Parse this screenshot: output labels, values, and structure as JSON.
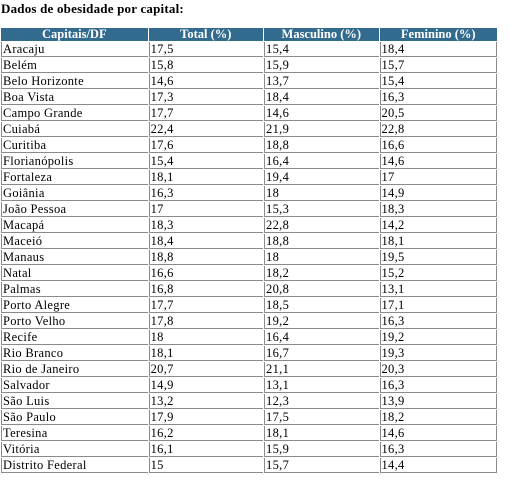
{
  "title": "Dados de obesidade por capital:",
  "table": {
    "headers": [
      "Capitais/DF",
      "Total (%)",
      "Masculino (%)",
      "Feminino (%)"
    ],
    "rows": [
      [
        "Aracaju",
        "17,5",
        "15,4",
        "18,4"
      ],
      [
        "Belém",
        "15,8",
        "15,9",
        "15,7"
      ],
      [
        "Belo Horizonte",
        "14,6",
        "13,7",
        "15,4"
      ],
      [
        "Boa Vista",
        "17,3",
        "18,4",
        "16,3"
      ],
      [
        "Campo Grande",
        "17,7",
        "14,6",
        "20,5"
      ],
      [
        "Cuiabá",
        "22,4",
        "21,9",
        "22,8"
      ],
      [
        "Curitiba",
        "17,6",
        "18,8",
        "16,6"
      ],
      [
        "Florianópolis",
        "15,4",
        "16,4",
        "14,6"
      ],
      [
        "Fortaleza",
        "18,1",
        "19,4",
        "17"
      ],
      [
        "Goiânia",
        "16,3",
        "18",
        "14,9"
      ],
      [
        "João Pessoa",
        "17",
        "15,3",
        "18,3"
      ],
      [
        "Macapá",
        "18,3",
        "22,8",
        "14,2"
      ],
      [
        "Maceió",
        "18,4",
        "18,8",
        "18,1"
      ],
      [
        "Manaus",
        "18,8",
        "18",
        "19,5"
      ],
      [
        "Natal",
        "16,6",
        "18,2",
        "15,2"
      ],
      [
        "Palmas",
        "16,8",
        "20,8",
        "13,1"
      ],
      [
        "Porto Alegre",
        "17,7",
        "18,5",
        "17,1"
      ],
      [
        "Porto Velho",
        "17,8",
        "19,2",
        "16,3"
      ],
      [
        "Recife",
        "18",
        "16,4",
        "19,2"
      ],
      [
        "Rio Branco",
        "18,1",
        "16,7",
        "19,3"
      ],
      [
        "Rio de Janeiro",
        "20,7",
        "21,1",
        "20,3"
      ],
      [
        "Salvador",
        "14,9",
        "13,1",
        "16,3"
      ],
      [
        "São Luis",
        "13,2",
        "12,3",
        "13,9"
      ],
      [
        "São Paulo",
        "17,9",
        "17,5",
        "18,2"
      ],
      [
        "Teresina",
        "16,2",
        "18,1",
        "14,6"
      ],
      [
        "Vitória",
        "16,1",
        "15,9",
        "16,3"
      ],
      [
        "Distrito Federal",
        "15",
        "15,7",
        "14,4"
      ]
    ]
  },
  "colors": {
    "header_background": "#336b8e",
    "header_text": "#ffffff",
    "cell_border": "#8a8a8a"
  }
}
